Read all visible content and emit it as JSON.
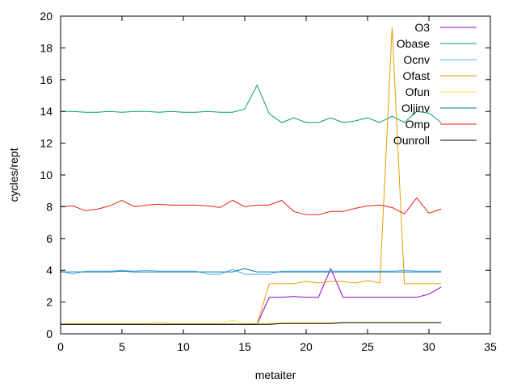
{
  "chart_data": {
    "type": "line",
    "title": "",
    "xlabel": "metaiter",
    "ylabel": "cycles/rept",
    "xlim": [
      0,
      35
    ],
    "ylim": [
      0,
      20
    ],
    "xticks": [
      0,
      5,
      10,
      15,
      20,
      25,
      30,
      35
    ],
    "yticks": [
      0,
      2,
      4,
      6,
      8,
      10,
      12,
      14,
      16,
      18,
      20
    ],
    "grid": false,
    "legend_position": "top-right",
    "x": [
      0,
      1,
      2,
      3,
      4,
      5,
      6,
      7,
      8,
      9,
      10,
      11,
      12,
      13,
      14,
      15,
      16,
      17,
      18,
      19,
      20,
      21,
      22,
      23,
      24,
      25,
      26,
      27,
      28,
      29,
      30,
      31
    ],
    "series": [
      {
        "name": "O3",
        "color": "#9400d3",
        "values": [
          0.6,
          0.6,
          0.6,
          0.6,
          0.6,
          0.6,
          0.6,
          0.6,
          0.6,
          0.6,
          0.6,
          0.6,
          0.6,
          0.6,
          0.6,
          0.6,
          0.6,
          2.3,
          2.3,
          2.35,
          2.3,
          2.3,
          4.1,
          2.3,
          2.3,
          2.3,
          2.3,
          2.3,
          2.3,
          2.3,
          2.5,
          2.95
        ]
      },
      {
        "name": "Obase",
        "color": "#009e73",
        "values": [
          14.0,
          14.0,
          13.95,
          13.95,
          14.0,
          13.95,
          14.0,
          14.0,
          13.95,
          14.0,
          13.95,
          13.95,
          14.0,
          13.95,
          13.95,
          14.15,
          15.65,
          13.85,
          13.3,
          13.6,
          13.3,
          13.3,
          13.6,
          13.3,
          13.4,
          13.6,
          13.3,
          13.7,
          13.3,
          14.0,
          13.9,
          13.3
        ]
      },
      {
        "name": "Ocnv",
        "color": "#56b4e9",
        "values": [
          3.95,
          3.75,
          3.95,
          3.95,
          3.95,
          4.0,
          3.95,
          4.0,
          3.95,
          3.95,
          3.95,
          3.95,
          3.75,
          3.75,
          4.05,
          3.75,
          3.75,
          3.75,
          3.95,
          3.95,
          3.95,
          3.95,
          3.95,
          3.95,
          3.95,
          3.95,
          3.95,
          3.95,
          4.0,
          3.95,
          3.95,
          3.95
        ]
      },
      {
        "name": "Ofast",
        "color": "#e69f00",
        "values": [
          0.6,
          0.6,
          0.6,
          0.6,
          0.6,
          0.6,
          0.6,
          0.6,
          0.6,
          0.6,
          0.6,
          0.6,
          0.6,
          0.6,
          0.6,
          0.6,
          0.6,
          3.15,
          3.15,
          3.15,
          3.3,
          3.2,
          3.3,
          3.3,
          3.2,
          3.35,
          3.2,
          19.3,
          3.15,
          3.15,
          3.15,
          3.15
        ]
      },
      {
        "name": "Ofun",
        "color": "#f0e442",
        "values": [
          0.65,
          0.65,
          0.65,
          0.65,
          0.65,
          0.65,
          0.65,
          0.65,
          0.75,
          0.65,
          0.65,
          0.65,
          0.65,
          0.65,
          0.85,
          0.65,
          0.65,
          0.65,
          0.7,
          0.7,
          0.7,
          0.7,
          0.7,
          0.7,
          0.7,
          0.7,
          0.7,
          0.7,
          0.7,
          0.7,
          0.7,
          0.7
        ]
      },
      {
        "name": "Oljinv",
        "color": "#0072b2",
        "values": [
          3.9,
          3.9,
          3.9,
          3.9,
          3.9,
          3.95,
          3.9,
          3.9,
          3.9,
          3.9,
          3.9,
          3.9,
          3.9,
          3.9,
          3.9,
          4.1,
          3.9,
          3.9,
          3.9,
          3.9,
          3.9,
          3.9,
          3.9,
          3.9,
          3.9,
          3.9,
          3.9,
          3.9,
          3.9,
          3.9,
          3.9,
          3.9
        ]
      },
      {
        "name": "Omp",
        "color": "#e51e10",
        "values": [
          8.0,
          8.05,
          7.75,
          7.85,
          8.05,
          8.4,
          8.0,
          8.1,
          8.15,
          8.1,
          8.1,
          8.1,
          8.05,
          7.95,
          8.4,
          8.0,
          8.1,
          8.1,
          8.4,
          7.7,
          7.5,
          7.5,
          7.7,
          7.7,
          7.9,
          8.05,
          8.1,
          7.95,
          7.55,
          8.55,
          7.6,
          7.85
        ]
      },
      {
        "name": "Ounroll",
        "color": "#000000",
        "values": [
          0.6,
          0.6,
          0.6,
          0.6,
          0.6,
          0.6,
          0.6,
          0.6,
          0.6,
          0.6,
          0.6,
          0.6,
          0.6,
          0.6,
          0.6,
          0.6,
          0.6,
          0.6,
          0.65,
          0.65,
          0.65,
          0.65,
          0.65,
          0.7,
          0.7,
          0.7,
          0.7,
          0.7,
          0.7,
          0.7,
          0.7,
          0.7
        ]
      }
    ]
  }
}
